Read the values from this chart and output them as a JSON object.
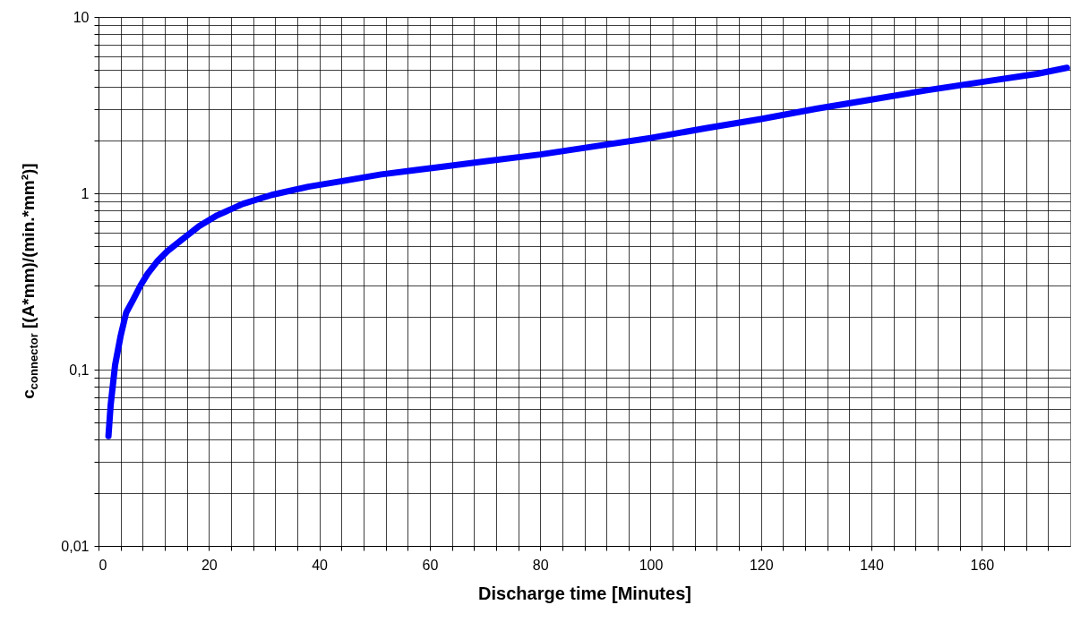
{
  "chart_data": {
    "type": "line",
    "xlabel": "Discharge time [Minutes]",
    "ylabel": "c$_{connector}$ [(A*mm)/(min.*mm²)]",
    "log": true,
    "grid": true,
    "marker": "none",
    "line_style": "solid",
    "xlim": [
      0,
      176
    ],
    "xticks": [
      0,
      {
        "value": 4,
        "label": null
      },
      {
        "value": 8,
        "label": null
      },
      {
        "value": 12,
        "label": null
      },
      {
        "value": 16,
        "label": null
      },
      20,
      {
        "value": 24,
        "label": null
      },
      {
        "value": 28,
        "label": null
      },
      {
        "value": 32,
        "label": null
      },
      {
        "value": 36,
        "label": null
      },
      40,
      {
        "value": 44,
        "label": null
      },
      {
        "value": 48,
        "label": null
      },
      {
        "value": 52,
        "label": null
      },
      {
        "value": 56,
        "label": null
      },
      60,
      {
        "value": 64,
        "label": null
      },
      {
        "value": 68,
        "label": null
      },
      {
        "value": 72,
        "label": null
      },
      {
        "value": 76,
        "label": null
      },
      80,
      {
        "value": 84,
        "label": null
      },
      {
        "value": 88,
        "label": null
      },
      {
        "value": 92,
        "label": null
      },
      {
        "value": 96,
        "label": null
      },
      100,
      {
        "value": 104,
        "label": null
      },
      {
        "value": 108,
        "label": null
      },
      {
        "value": 112,
        "label": null
      },
      {
        "value": 116,
        "label": null
      },
      120,
      {
        "value": 124,
        "label": null
      },
      {
        "value": 128,
        "label": null
      },
      {
        "value": 132,
        "label": null
      },
      {
        "value": 136,
        "label": null
      },
      140,
      {
        "value": 144,
        "label": null
      },
      {
        "value": 148,
        "label": null
      },
      {
        "value": 152,
        "label": null
      },
      {
        "value": 156,
        "label": null
      },
      160,
      {
        "value": 164,
        "label": null
      },
      {
        "value": 168,
        "label": null
      },
      {
        "value": 172,
        "label": null
      }
    ],
    "ylim": [
      0.01,
      10
    ],
    "yticks": [
      {
        "value": 0.01,
        "label": "0,01"
      },
      {
        "value": 0.02,
        "label": null
      },
      {
        "value": 0.03,
        "label": null
      },
      {
        "value": 0.04,
        "label": null
      },
      {
        "value": 0.05,
        "label": null
      },
      {
        "value": 0.06,
        "label": null
      },
      {
        "value": 0.07,
        "label": null
      },
      {
        "value": 0.08,
        "label": null
      },
      {
        "value": 0.09,
        "label": null
      },
      {
        "value": 0.1,
        "label": "0,1"
      },
      {
        "value": 0.2,
        "label": null
      },
      {
        "value": 0.3,
        "label": null
      },
      {
        "value": 0.4,
        "label": null
      },
      {
        "value": 0.5,
        "label": null
      },
      {
        "value": 0.6,
        "label": null
      },
      {
        "value": 0.7,
        "label": null
      },
      {
        "value": 0.8,
        "label": null
      },
      {
        "value": 0.9,
        "label": null
      },
      1,
      {
        "value": 2,
        "label": null
      },
      {
        "value": 3,
        "label": null
      },
      {
        "value": 4,
        "label": null
      },
      {
        "value": 5,
        "label": null
      },
      {
        "value": 6,
        "label": null
      },
      {
        "value": 7,
        "label": null
      },
      {
        "value": 8,
        "label": null
      },
      {
        "value": 9,
        "label": null
      },
      10
    ],
    "x": [
      1.8,
      2.2,
      3,
      4,
      5,
      6.3,
      7.6,
      8.9,
      10.6,
      12.5,
      14.9,
      18.2,
      21.5,
      26.1,
      31.4,
      38,
      44.6,
      51.2,
      57.8,
      62.7,
      70,
      80,
      90,
      100,
      110,
      120,
      130,
      140,
      150,
      160,
      170,
      175.4
    ],
    "series": [
      {
        "color": "#0000ff",
        "values": [
          0.042,
          0.063,
          0.106,
          0.155,
          0.21,
          0.25,
          0.3,
          0.35,
          0.41,
          0.47,
          0.54,
          0.65,
          0.75,
          0.87,
          0.98,
          1.09,
          1.18,
          1.28,
          1.36,
          1.42,
          1.52,
          1.66,
          1.85,
          2.06,
          2.34,
          2.64,
          3.02,
          3.4,
          3.84,
          4.28,
          4.76,
          5.15
        ]
      }
    ]
  }
}
